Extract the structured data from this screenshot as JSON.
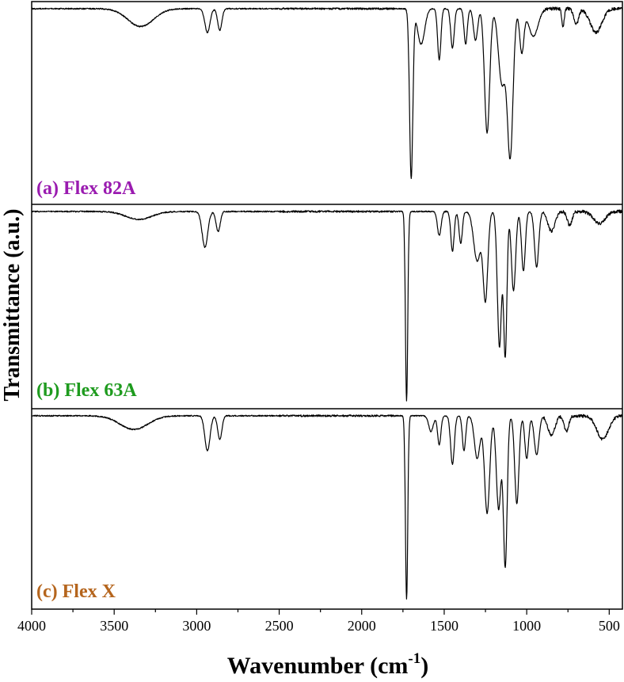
{
  "chart_data": {
    "type": "line",
    "xlabel": "Wavenumber (cm",
    "xlabel_superscript": "-1",
    "xlabel_suffix": ")",
    "ylabel": "Transmittance (a.u.)",
    "xlim": [
      4000,
      420
    ],
    "x_reversed": true,
    "xticks": [
      4000,
      3500,
      3000,
      2500,
      2000,
      1500,
      1000,
      500
    ],
    "grid": false,
    "panels": [
      {
        "label": "(a) Flex 82A",
        "color": "#9a1bb0",
        "ylim": [
          0,
          100
        ],
        "baseline": 98,
        "bands": [
          {
            "c": 3340,
            "w": 110,
            "d": 9
          },
          {
            "c": 2935,
            "w": 22,
            "d": 12
          },
          {
            "c": 2860,
            "w": 18,
            "d": 11
          },
          {
            "c": 1700,
            "w": 14,
            "d": 86
          },
          {
            "c": 1640,
            "w": 30,
            "d": 18
          },
          {
            "c": 1530,
            "w": 14,
            "d": 26
          },
          {
            "c": 1450,
            "w": 15,
            "d": 20
          },
          {
            "c": 1370,
            "w": 14,
            "d": 18
          },
          {
            "c": 1310,
            "w": 18,
            "d": 16
          },
          {
            "c": 1240,
            "w": 22,
            "d": 63
          },
          {
            "c": 1150,
            "w": 30,
            "d": 38
          },
          {
            "c": 1100,
            "w": 24,
            "d": 74
          },
          {
            "c": 1030,
            "w": 18,
            "d": 22
          },
          {
            "c": 960,
            "w": 40,
            "d": 14
          },
          {
            "c": 780,
            "w": 10,
            "d": 9
          },
          {
            "c": 700,
            "w": 20,
            "d": 8
          },
          {
            "c": 580,
            "w": 50,
            "d": 12
          }
        ]
      },
      {
        "label": "(b) Flex 63A",
        "color": "#1e9b1e",
        "ylim": [
          0,
          100
        ],
        "baseline": 98,
        "bands": [
          {
            "c": 3350,
            "w": 110,
            "d": 4
          },
          {
            "c": 2950,
            "w": 24,
            "d": 18
          },
          {
            "c": 2870,
            "w": 18,
            "d": 10
          },
          {
            "c": 1728,
            "w": 10,
            "d": 95
          },
          {
            "c": 1530,
            "w": 16,
            "d": 12
          },
          {
            "c": 1450,
            "w": 14,
            "d": 20
          },
          {
            "c": 1400,
            "w": 14,
            "d": 16
          },
          {
            "c": 1300,
            "w": 30,
            "d": 25
          },
          {
            "c": 1250,
            "w": 20,
            "d": 44
          },
          {
            "c": 1165,
            "w": 18,
            "d": 68
          },
          {
            "c": 1130,
            "w": 14,
            "d": 72
          },
          {
            "c": 1080,
            "w": 18,
            "d": 40
          },
          {
            "c": 1020,
            "w": 16,
            "d": 30
          },
          {
            "c": 940,
            "w": 18,
            "d": 28
          },
          {
            "c": 850,
            "w": 30,
            "d": 10
          },
          {
            "c": 740,
            "w": 20,
            "d": 7
          },
          {
            "c": 560,
            "w": 50,
            "d": 6
          }
        ]
      },
      {
        "label": "(c) Flex X",
        "color": "#b5651d",
        "ylim": [
          0,
          100
        ],
        "baseline": 98,
        "bands": [
          {
            "c": 3380,
            "w": 120,
            "d": 7
          },
          {
            "c": 2935,
            "w": 22,
            "d": 18
          },
          {
            "c": 2860,
            "w": 18,
            "d": 12
          },
          {
            "c": 1728,
            "w": 10,
            "d": 94
          },
          {
            "c": 1580,
            "w": 20,
            "d": 8
          },
          {
            "c": 1530,
            "w": 14,
            "d": 15
          },
          {
            "c": 1450,
            "w": 16,
            "d": 25
          },
          {
            "c": 1380,
            "w": 14,
            "d": 18
          },
          {
            "c": 1300,
            "w": 24,
            "d": 22
          },
          {
            "c": 1240,
            "w": 22,
            "d": 50
          },
          {
            "c": 1170,
            "w": 20,
            "d": 48
          },
          {
            "c": 1130,
            "w": 16,
            "d": 77
          },
          {
            "c": 1060,
            "w": 18,
            "d": 45
          },
          {
            "c": 1000,
            "w": 16,
            "d": 22
          },
          {
            "c": 940,
            "w": 20,
            "d": 20
          },
          {
            "c": 850,
            "w": 30,
            "d": 10
          },
          {
            "c": 760,
            "w": 20,
            "d": 8
          },
          {
            "c": 540,
            "w": 50,
            "d": 12
          }
        ]
      }
    ]
  }
}
